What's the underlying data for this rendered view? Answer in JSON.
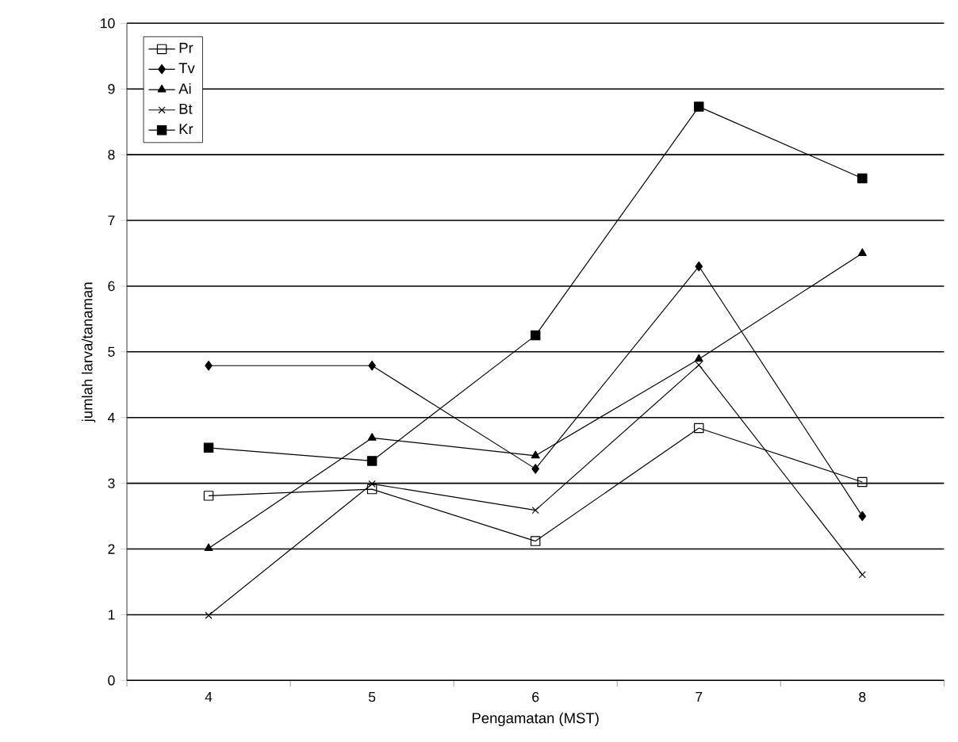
{
  "chart_data": {
    "type": "line",
    "xlabel": "Pengamatan (MST)",
    "ylabel": "jumlah larva/tanaman",
    "categories": [
      "4",
      "5",
      "6",
      "7",
      "8"
    ],
    "series": [
      {
        "name": "Pr",
        "color": "#000000",
        "marker": "square-open",
        "values": [
          2.81,
          2.91,
          2.12,
          3.84,
          3.02
        ]
      },
      {
        "name": "Tv",
        "color": "#000000",
        "marker": "diamond",
        "values": [
          4.79,
          4.79,
          3.22,
          6.3,
          2.5
        ]
      },
      {
        "name": "Ai",
        "color": "#000000",
        "marker": "triangle",
        "values": [
          2.01,
          3.69,
          3.42,
          4.89,
          6.5
        ]
      },
      {
        "name": "Bt",
        "color": "#000000",
        "marker": "cross",
        "values": [
          0.99,
          2.99,
          2.59,
          4.8,
          1.61
        ]
      },
      {
        "name": "Kr",
        "color": "#000000",
        "marker": "square",
        "values": [
          3.54,
          3.34,
          5.25,
          8.73,
          7.64
        ]
      }
    ],
    "ylim": [
      0,
      10
    ],
    "yticks": [
      0,
      1,
      2,
      3,
      4,
      5,
      6,
      7,
      8,
      9,
      10
    ],
    "grid": "y",
    "legend": "top left",
    "line_style": "solid"
  }
}
